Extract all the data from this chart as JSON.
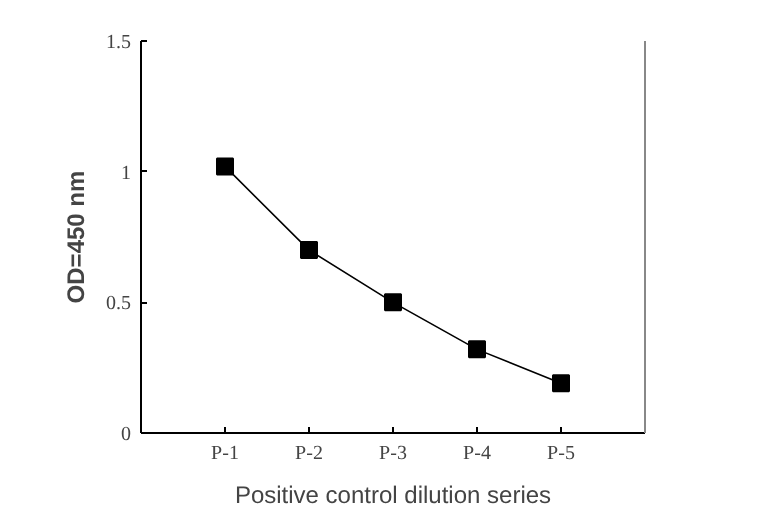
{
  "chart_data": {
    "type": "line",
    "xlabel": "Positive control dilution series",
    "ylabel": "OD=450 nm",
    "categories": [
      "P-1",
      "P-2",
      "P-3",
      "P-4",
      "P-5"
    ],
    "series": [
      {
        "color": "#000000",
        "values": [
          1.02,
          0.7,
          0.5,
          0.32,
          0.19
        ]
      }
    ],
    "ylim": [
      0,
      1.5
    ],
    "yticks": [
      0,
      0.5,
      1,
      1.5
    ],
    "marker": "square",
    "line_style": "solid",
    "grid": false
  }
}
